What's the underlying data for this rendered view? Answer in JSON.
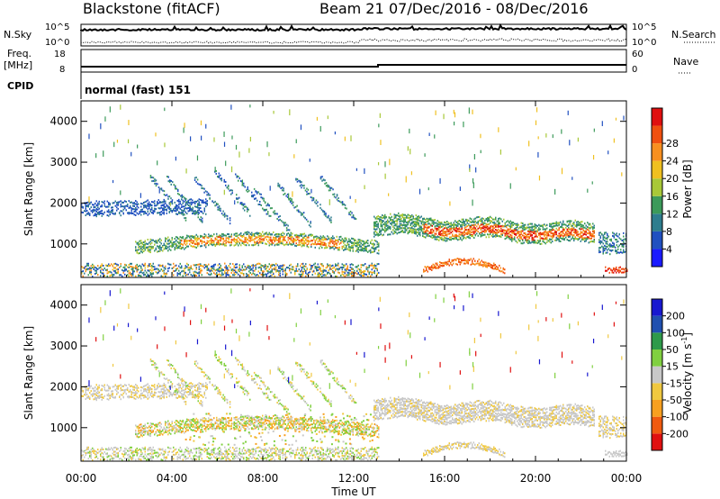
{
  "header": {
    "station": "Blackstone (fitACF)",
    "beam": "Beam 21",
    "daterange": "07/Dec/2016 - 08/Dec/2016"
  },
  "top_panels": {
    "nsky_label": "N.Sky",
    "nsearch_label": "N.Search",
    "nsky_top": "10^5",
    "nsky_bottom": "10^0",
    "nsearch_top": "10^5",
    "nsearch_bottom": "10^0",
    "freq_label": "Freq.",
    "freq_unit": "[MHz]",
    "freq_top": "18",
    "freq_bottom": "8",
    "nave_label": "Nave",
    "nave_top": "60",
    "nave_bottom": "0",
    "cpid_label": "CPID",
    "cpid_value": "normal (fast) 151"
  },
  "chart_data": [
    {
      "type": "heatmap",
      "name": "power",
      "ylabel": "Slant Range [km]",
      "yticks": [
        "1000",
        "2000",
        "3000",
        "4000"
      ],
      "ylim": [
        180,
        4500
      ],
      "colorbar_label": "Power [dB]",
      "colorbar_ticks": [
        "4",
        "8",
        "12",
        "16",
        "20",
        "24",
        "28"
      ],
      "colorbar_colors": [
        "#1a1aff",
        "#2050c0",
        "#2e7d8e",
        "#3c9a5a",
        "#a8c838",
        "#f0c020",
        "#f89020",
        "#f05010",
        "#e01010"
      ]
    },
    {
      "type": "heatmap",
      "name": "velocity",
      "ylabel": "Slant Range [km]",
      "yticks": [
        "1000",
        "2000",
        "3000",
        "4000"
      ],
      "ylim": [
        180,
        4500
      ],
      "colorbar_label": "Velocity [m s",
      "colorbar_label_sup": "-1",
      "colorbar_label_end": "]",
      "colorbar_ticks": [
        "-200",
        "-100",
        "-50",
        "-15",
        "15",
        "50",
        "100",
        "200"
      ],
      "colorbar_colors": [
        "#e01010",
        "#f05a10",
        "#f8a020",
        "#f0c840",
        "#c8c8c8",
        "#80d040",
        "#2e9a4a",
        "#2050b0",
        "#1818d0"
      ]
    }
  ],
  "xaxis": {
    "ticks": [
      "00:00",
      "04:00",
      "08:00",
      "12:00",
      "16:00",
      "20:00",
      "00:00"
    ],
    "label": "Time UT"
  }
}
